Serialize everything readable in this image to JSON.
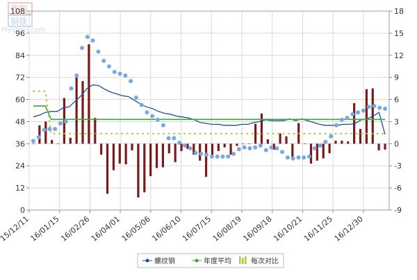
{
  "watermark": {
    "text_top": "我的",
    "text_mid": "钢铁",
    "text_bottom": "Mysteel.com"
  },
  "chart_data": {
    "type": "bar",
    "title": "",
    "xlabel": "",
    "ylabel": "",
    "left_axis": {
      "ylim": [
        0,
        108
      ],
      "ticks": [
        0,
        12,
        24,
        36,
        48,
        60,
        72,
        84,
        96,
        108
      ]
    },
    "right_axis": {
      "ylim": [
        -9,
        18
      ],
      "ticks": [
        -9,
        -6,
        -3,
        0,
        3,
        6,
        9,
        12,
        15,
        18
      ]
    },
    "x_tick_labels": [
      "15/12/11",
      "16/01/15",
      "16/02/26",
      "16/04/01",
      "16/05/06",
      "16/06/10",
      "16/07/15",
      "16/08/19",
      "16/09/18",
      "16/10/21",
      "16/11/25",
      "16/12/30"
    ],
    "grid": true,
    "legend_position": "bottom",
    "legend": [
      "螺纹钢",
      "年度平均",
      "每次对比"
    ],
    "series": [
      {
        "name": "螺纹钢",
        "kind": "scatter",
        "axis": "left",
        "color": "#7aa8dd",
        "values": [
          37.5,
          39.5,
          43.5,
          44,
          44,
          47,
          48,
          66,
          73,
          88,
          94,
          92,
          86,
          81,
          78,
          75,
          74,
          73,
          70,
          61,
          57,
          53,
          51,
          49,
          46,
          39,
          39,
          36.5,
          35,
          33.5,
          31,
          30.5,
          30,
          29,
          29,
          29,
          29,
          30.5,
          33,
          34,
          33.5,
          34,
          35,
          32.5,
          34,
          33.5,
          31.5,
          28.5,
          28,
          28.5,
          28.5,
          29,
          33.5,
          35,
          37,
          40,
          46,
          49,
          50,
          52,
          53,
          54,
          56,
          56.5,
          55.5,
          55
        ]
      },
      {
        "name": "",
        "kind": "line",
        "axis": "left",
        "color": "#1a4fa0",
        "values": [
          50.5,
          51.5,
          53,
          53.5,
          53.5,
          55.5,
          56,
          59,
          62,
          66,
          68,
          67.5,
          65.5,
          64,
          63,
          62,
          61.5,
          59.5,
          57.5,
          56,
          55,
          53.5,
          52.5,
          52,
          51,
          50.5,
          50,
          49,
          47.5,
          47,
          46.5,
          46.5,
          46,
          46,
          46,
          46.5,
          46.5,
          47.5,
          48,
          49,
          48.5,
          48.5,
          48.5,
          49.5,
          48.5,
          49.5,
          48.5,
          47.5,
          46.5,
          46,
          46,
          46,
          46.5,
          46.5,
          47,
          49,
          49.5,
          51,
          53,
          41
        ]
      },
      {
        "name": "年度平均",
        "kind": "step",
        "axis": "left",
        "color": "#33aa33",
        "values": [
          56.5,
          56.5,
          56.5,
          49.2,
          49.2,
          49.2,
          49.2,
          49.2,
          49.2,
          49.2,
          49.2,
          49.2,
          49.2,
          49.2,
          49.2,
          49.2,
          49.2,
          49.2,
          49.2,
          49.2,
          49.2,
          49.2,
          49.2,
          49.2,
          49.2,
          49.2,
          49.2,
          49.2,
          49.2,
          49.2,
          49.2,
          49.2,
          49.2,
          49.2,
          49.2,
          49.2,
          49.2,
          49.2,
          49.2,
          49.2,
          49.2,
          49.2,
          49.2,
          49.2,
          49.2,
          49.2,
          49.2,
          49.2,
          49.2,
          49.2,
          49.2,
          49.2,
          49.2,
          49.2,
          49.2,
          49.2,
          49.2,
          49.2,
          49.2,
          49.2
        ]
      },
      {
        "name": "",
        "kind": "dotted",
        "axis": "left",
        "color": "#aacc44",
        "values": [
          64.5,
          64.5,
          64.5,
          41.5,
          41.5,
          41.5,
          41.5,
          41.5,
          41.5,
          41.5,
          41.5,
          41.5,
          41.5,
          41.5,
          41.5,
          41.5,
          41.5,
          41.5,
          41.5,
          41.5,
          41.5,
          41.5,
          41.5,
          41.5,
          41.5,
          41.5,
          41.5,
          41.5,
          41.5,
          41.5,
          41.5,
          41.5,
          41.5,
          41.5,
          41.5,
          41.5,
          41.5,
          41.5,
          41.5,
          41.5,
          41.5,
          41.5,
          41.5,
          41.5,
          41.5,
          41.5,
          41.5,
          41.5,
          41.5,
          41.5,
          41.5,
          41.5,
          41.5,
          41.5,
          41.5,
          41.5,
          41.5,
          41.5,
          41.5,
          41.5
        ]
      },
      {
        "name": "每次对比",
        "kind": "bar",
        "axis": "right",
        "color": "#7a1a1a",
        "values": [
          0,
          2.5,
          3,
          0.5,
          0,
          6.2,
          0.8,
          9.5,
          8.5,
          13.5,
          3.5,
          -1.5,
          -6.8,
          -3.6,
          -2.7,
          -2.8,
          -0.9,
          -7.3,
          -6.6,
          -4.4,
          -3.3,
          -3.2,
          -1.3,
          -2.5,
          -1.0,
          -0.7,
          -1.5,
          -2.3,
          -4.5,
          -1.7,
          -1.0,
          -0.5,
          -1.5,
          -0.3,
          0,
          0,
          2.7,
          4.1,
          0.6,
          -0.8,
          1.4,
          1.0,
          -2.1,
          2.8,
          0,
          -2.7,
          -2.3,
          -2.0,
          -1.3,
          0.4,
          0.4,
          0.3,
          5.5,
          2.0,
          7.4,
          7.5,
          -0.9,
          -0.8
        ]
      }
    ]
  }
}
